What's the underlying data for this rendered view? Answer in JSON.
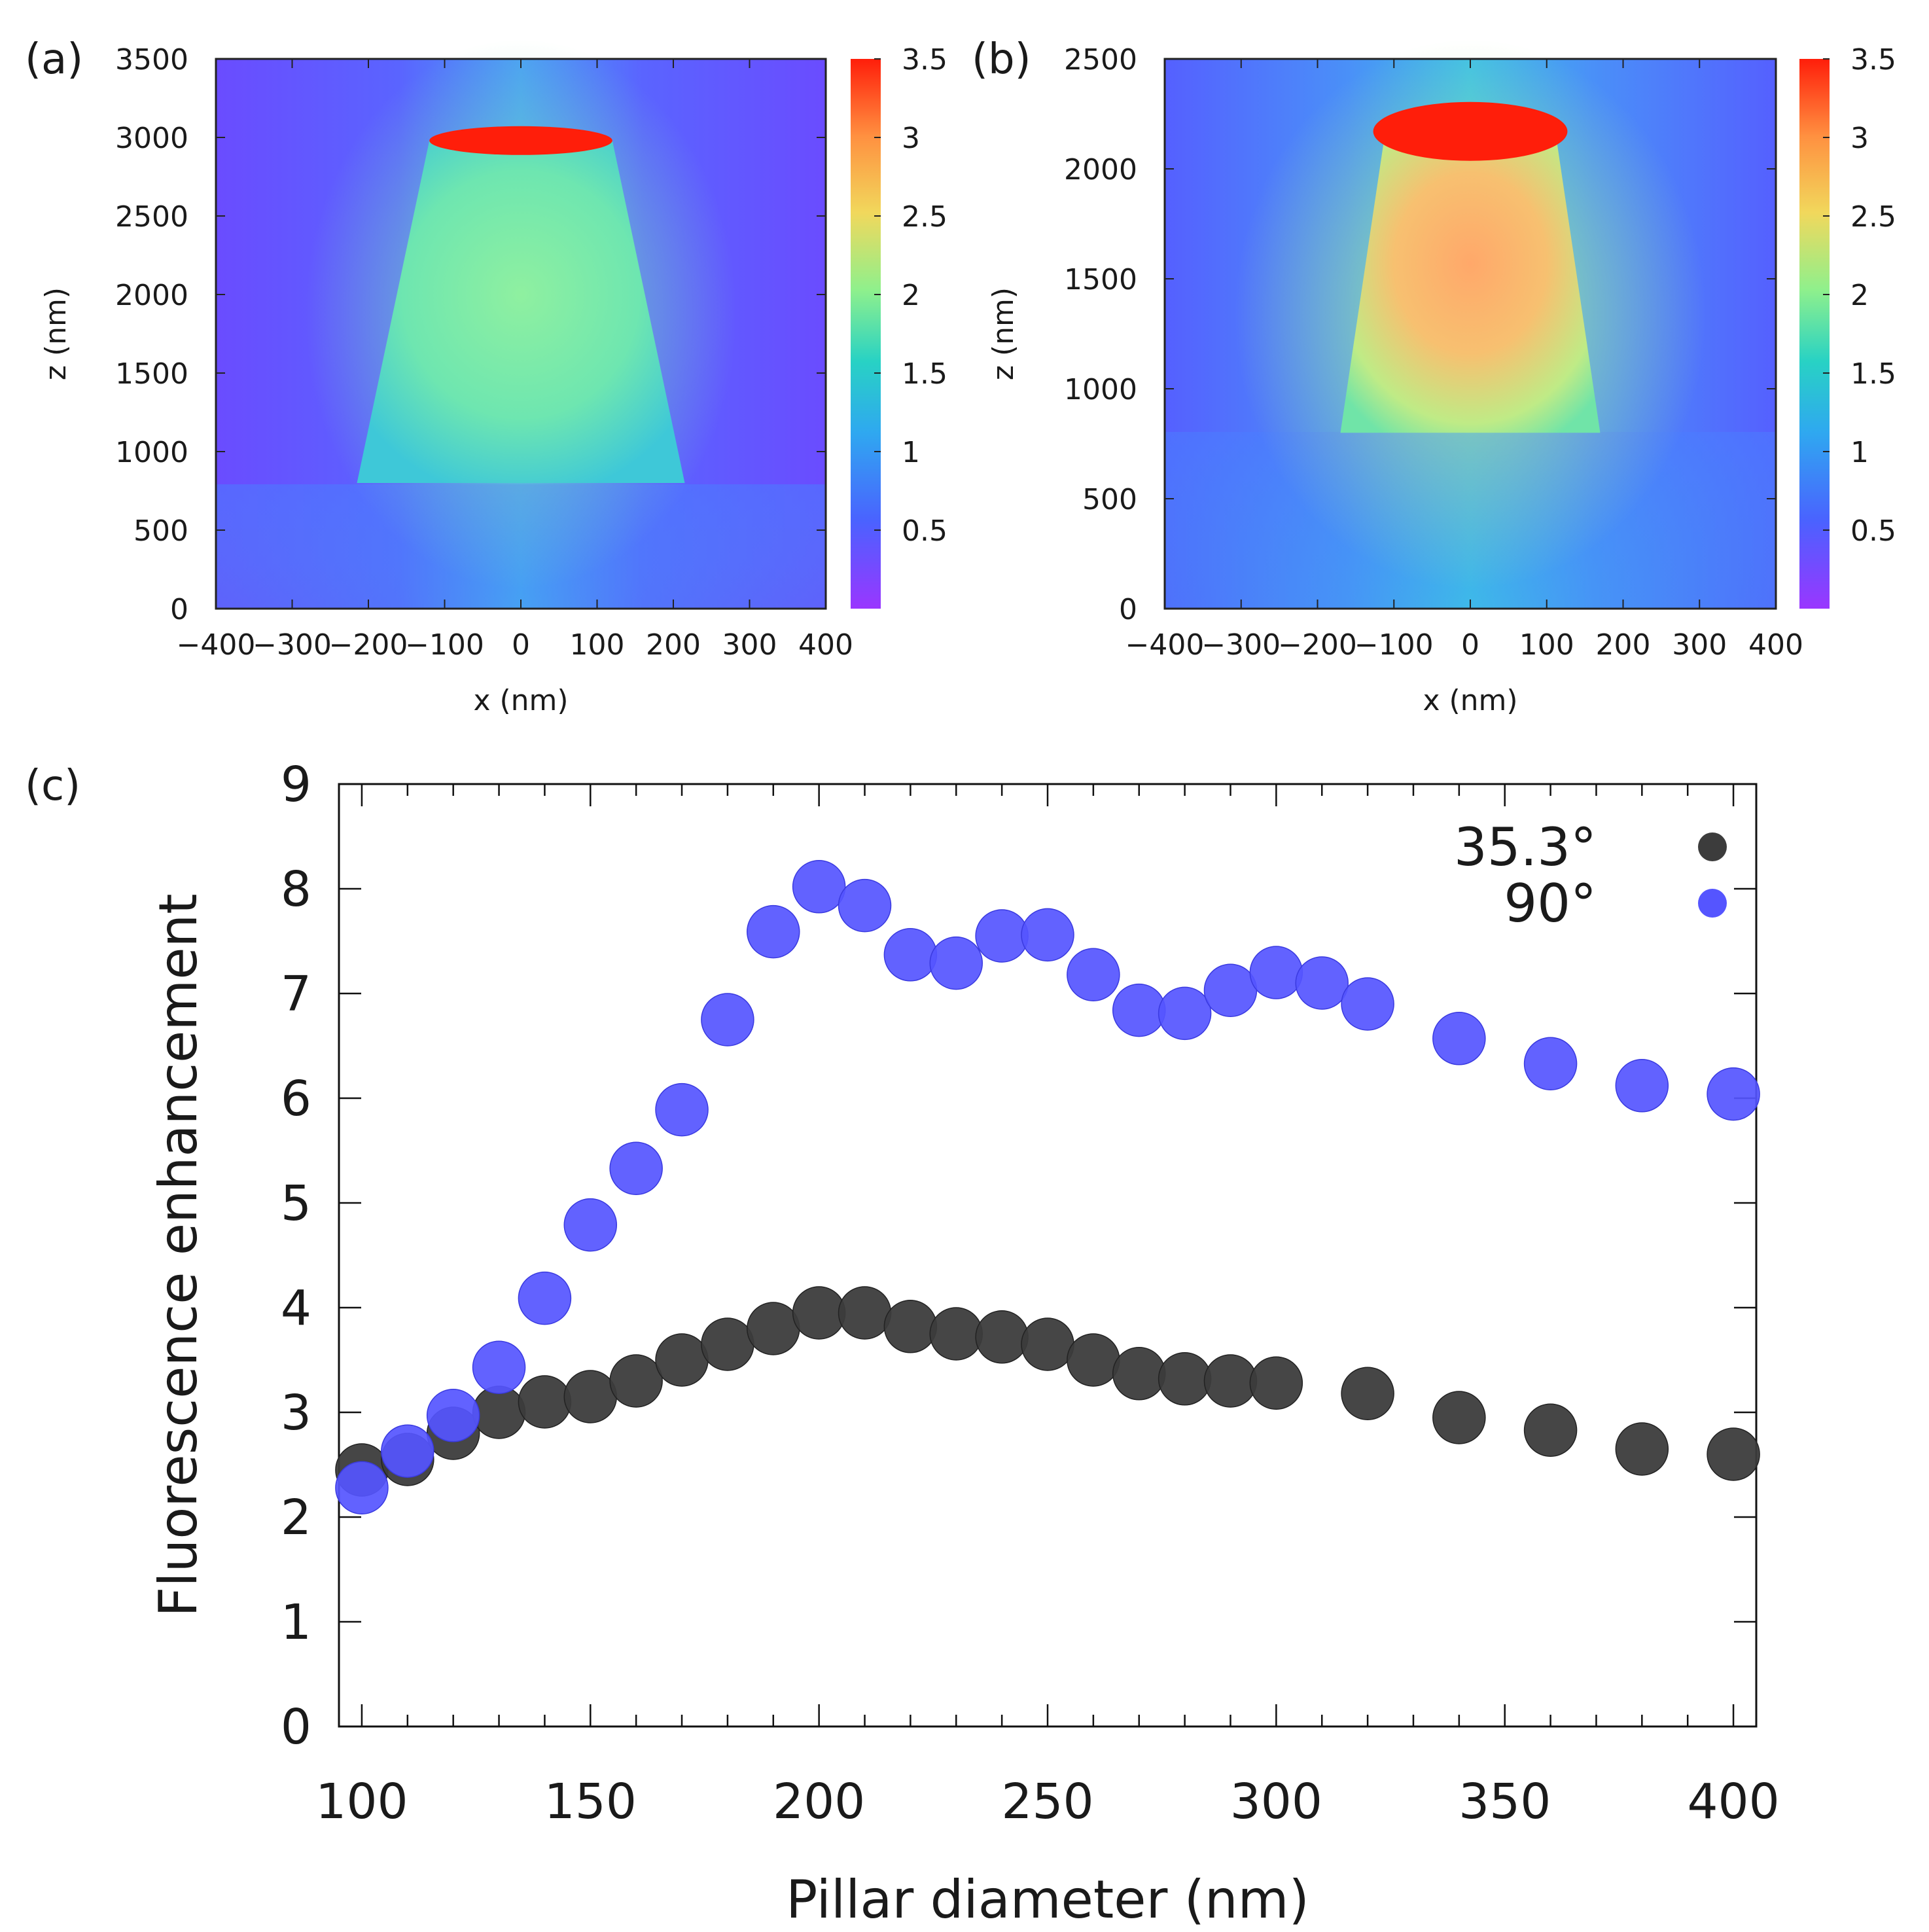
{
  "colors": {
    "series_35": "#3c3c3c",
    "series_90": "#5555ff",
    "colormap": [
      "#8a2eff",
      "#3f6cff",
      "#21c8d8",
      "#7ff09a",
      "#f0d35a",
      "#ff9a4a",
      "#ff1e0a"
    ]
  },
  "chart_data": [
    {
      "panel": "(a)",
      "type": "heatmap",
      "title": "",
      "xlabel": "x (nm)",
      "ylabel": "z (nm)",
      "xlim": [
        -400,
        400
      ],
      "ylim": [
        0,
        3500
      ],
      "xticks": [
        "−400",
        "−300",
        "−200",
        "−100",
        "0",
        "100",
        "200",
        "300",
        "400"
      ],
      "yticks": [
        "0",
        "500",
        "1000",
        "1500",
        "2000",
        "2500",
        "3000",
        "3500"
      ],
      "colorbar": {
        "range": [
          0,
          3.5
        ],
        "ticks": [
          "0.5",
          "1",
          "1.5",
          "2",
          "2.5",
          "3",
          "3.5"
        ]
      },
      "structure": {
        "base_z": 800,
        "top_z": 2980,
        "base_half_width": 215,
        "top_half_width": 120
      }
    },
    {
      "panel": "(b)",
      "type": "heatmap",
      "title": "",
      "xlabel": "x (nm)",
      "ylabel": "z (nm)",
      "xlim": [
        -400,
        400
      ],
      "ylim": [
        0,
        2500
      ],
      "xticks": [
        "−400",
        "−300",
        "−200",
        "−100",
        "0",
        "100",
        "200",
        "300",
        "400"
      ],
      "yticks": [
        "0",
        "500",
        "1000",
        "1500",
        "2000",
        "2500"
      ],
      "colorbar": {
        "range": [
          0,
          3.5
        ],
        "ticks": [
          "0.5",
          "1",
          "1.5",
          "2",
          "2.5",
          "3",
          "3.5"
        ]
      },
      "structure": {
        "base_z": 800,
        "top_z": 2200,
        "base_half_width": 170,
        "top_half_width": 110
      }
    },
    {
      "panel": "(c)",
      "type": "scatter",
      "title": "",
      "xlabel": "Pillar diameter (nm)",
      "ylabel": "Fluorescence enhancement",
      "xlim": [
        95,
        405
      ],
      "ylim": [
        0,
        9
      ],
      "xticks": [
        "100",
        "150",
        "200",
        "250",
        "300",
        "350",
        "400"
      ],
      "yticks": [
        "0",
        "1",
        "2",
        "3",
        "4",
        "5",
        "6",
        "7",
        "8",
        "9"
      ],
      "series": [
        {
          "name": "35.3°",
          "x": [
            100,
            110,
            120,
            130,
            140,
            150,
            160,
            170,
            180,
            190,
            200,
            210,
            220,
            230,
            240,
            250,
            260,
            270,
            280,
            290,
            300,
            320,
            340,
            360,
            380,
            400
          ],
          "values": [
            2.45,
            2.55,
            2.8,
            3.0,
            3.1,
            3.15,
            3.3,
            3.5,
            3.65,
            3.8,
            3.95,
            3.95,
            3.82,
            3.75,
            3.72,
            3.65,
            3.5,
            3.37,
            3.32,
            3.3,
            3.28,
            3.18,
            2.95,
            2.83,
            2.65,
            2.6
          ]
        },
        {
          "name": "90°",
          "x": [
            100,
            110,
            120,
            130,
            140,
            150,
            160,
            170,
            180,
            190,
            200,
            210,
            220,
            230,
            240,
            250,
            260,
            270,
            280,
            290,
            300,
            310,
            320,
            340,
            360,
            380,
            400
          ],
          "values": [
            2.28,
            2.63,
            2.97,
            3.43,
            4.09,
            4.79,
            5.33,
            5.89,
            6.75,
            7.59,
            8.02,
            7.84,
            7.37,
            7.29,
            7.55,
            7.56,
            7.18,
            6.84,
            6.81,
            7.03,
            7.2,
            7.1,
            6.9,
            6.57,
            6.33,
            6.12,
            6.04
          ]
        }
      ],
      "legend_position": "top-right"
    }
  ]
}
